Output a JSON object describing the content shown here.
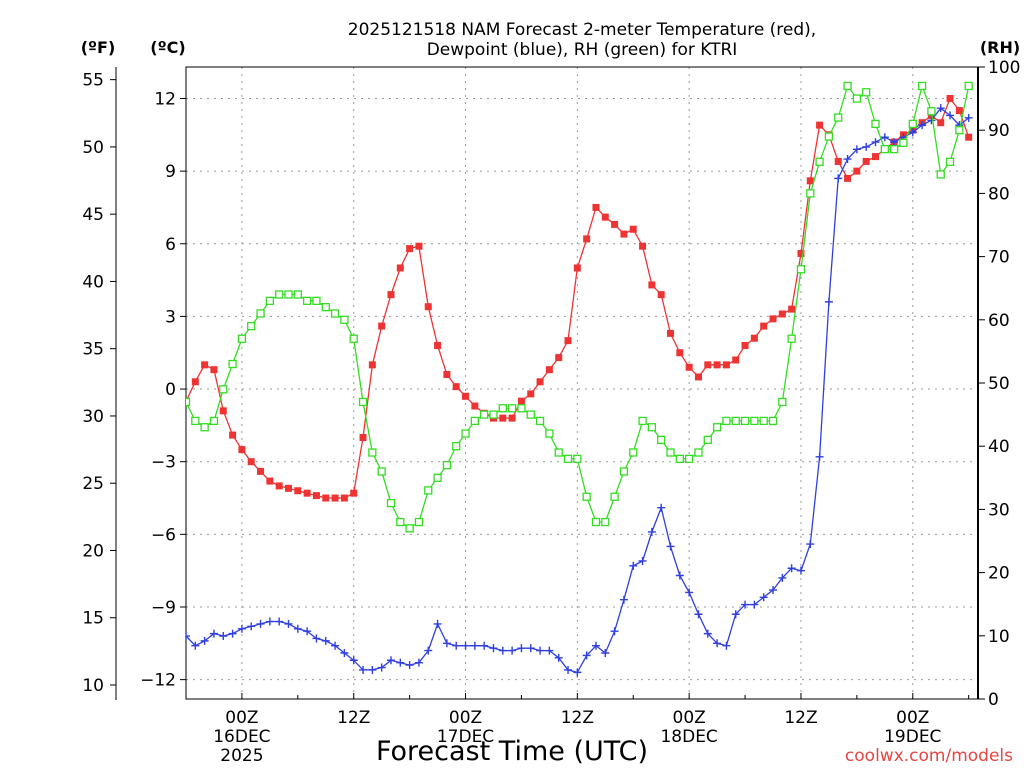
{
  "chart_data": {
    "type": "line",
    "title_line1": "2025121518 NAM Forecast 2-meter Temperature (red),",
    "title_line2": "Dewpoint (blue), RH (green) for KTRI",
    "xlabel": "Forecast Time (UTC)",
    "left_unit_f": "(ºF)",
    "left_unit_c": "(ºC)",
    "right_unit": "(RH)",
    "watermark": "coolwx.com/models",
    "hours": [
      18,
      19,
      20,
      21,
      22,
      23,
      24,
      25,
      26,
      27,
      28,
      29,
      30,
      31,
      32,
      33,
      34,
      35,
      36,
      37,
      38,
      39,
      40,
      41,
      42,
      43,
      44,
      45,
      46,
      47,
      48,
      49,
      50,
      51,
      52,
      53,
      54,
      55,
      56,
      57,
      58,
      59,
      60,
      61,
      62,
      63,
      64,
      65,
      66,
      67,
      68,
      69,
      70,
      71,
      72,
      73,
      74,
      75,
      76,
      77,
      78,
      79,
      80,
      81,
      82,
      83,
      84,
      85,
      86,
      87,
      88,
      89,
      90,
      91,
      92,
      93,
      94,
      95,
      96,
      97,
      98,
      99,
      100,
      101,
      102
    ],
    "xlim": [
      18,
      103
    ],
    "x_ticks": [
      {
        "hour": 24,
        "label": "00Z",
        "date": "16DEC",
        "year": "2025"
      },
      {
        "hour": 36,
        "label": "12Z",
        "date": "",
        "year": ""
      },
      {
        "hour": 48,
        "label": "00Z",
        "date": "17DEC",
        "year": ""
      },
      {
        "hour": 60,
        "label": "12Z",
        "date": "",
        "year": ""
      },
      {
        "hour": 72,
        "label": "00Z",
        "date": "18DEC",
        "year": ""
      },
      {
        "hour": 84,
        "label": "12Z",
        "date": "",
        "year": ""
      },
      {
        "hour": 96,
        "label": "00Z",
        "date": "19DEC",
        "year": ""
      }
    ],
    "ylim_c": [
      -12.8,
      13.3
    ],
    "y_ticks_c": [
      "12",
      "9",
      "6",
      "3",
      "0",
      "−3",
      "−6",
      "−9",
      "−12"
    ],
    "y_ticks_f": [
      "55",
      "50",
      "45",
      "40",
      "35",
      "30",
      "25",
      "20",
      "15",
      "10"
    ],
    "y_ticks_rh": [
      "100",
      "90",
      "80",
      "70",
      "60",
      "50",
      "40",
      "30",
      "20",
      "10",
      "0"
    ],
    "grid": true,
    "series": [
      {
        "name": "Temperature (°C)",
        "color": "#ee3333",
        "marker": "filled-square",
        "values": [
          -0.5,
          0.3,
          1.0,
          0.8,
          -0.9,
          -1.9,
          -2.5,
          -3.0,
          -3.4,
          -3.8,
          -4.0,
          -4.1,
          -4.2,
          -4.3,
          -4.4,
          -4.5,
          -4.5,
          -4.5,
          -4.3,
          -2.0,
          1.0,
          2.6,
          3.9,
          5.0,
          5.8,
          5.9,
          3.4,
          1.8,
          0.6,
          0.1,
          -0.3,
          -0.7,
          -1.0,
          -1.2,
          -1.2,
          -1.2,
          -0.5,
          -0.2,
          0.3,
          0.8,
          1.3,
          2.0,
          5.0,
          6.2,
          7.5,
          7.1,
          6.8,
          6.4,
          6.6,
          5.9,
          4.3,
          3.9,
          2.3,
          1.5,
          0.9,
          0.5,
          1.0,
          1.0,
          1.0,
          1.2,
          1.8,
          2.1,
          2.6,
          2.9,
          3.1,
          3.3,
          5.6,
          8.6,
          10.9,
          10.5,
          9.4,
          8.7,
          9.0,
          9.4,
          9.6,
          9.9,
          10.2,
          10.5,
          10.7,
          11.0,
          11.3,
          11.0,
          12.0,
          11.5,
          10.4
        ]
      },
      {
        "name": "Dewpoint (°C)",
        "color": "#2f3fe0",
        "marker": "plus",
        "values": [
          -10.2,
          -10.6,
          -10.4,
          -10.1,
          -10.2,
          -10.1,
          -9.9,
          -9.8,
          -9.7,
          -9.6,
          -9.6,
          -9.7,
          -9.9,
          -10.0,
          -10.3,
          -10.4,
          -10.6,
          -10.9,
          -11.2,
          -11.6,
          -11.6,
          -11.5,
          -11.2,
          -11.3,
          -11.4,
          -11.3,
          -10.8,
          -9.7,
          -10.5,
          -10.6,
          -10.6,
          -10.6,
          -10.6,
          -10.7,
          -10.8,
          -10.8,
          -10.7,
          -10.7,
          -10.8,
          -10.8,
          -11.1,
          -11.6,
          -11.7,
          -11.0,
          -10.6,
          -10.9,
          -10.0,
          -8.7,
          -7.3,
          -7.1,
          -5.9,
          -4.9,
          -6.5,
          -7.7,
          -8.4,
          -9.3,
          -10.1,
          -10.5,
          -10.6,
          -9.3,
          -8.9,
          -8.9,
          -8.6,
          -8.3,
          -7.8,
          -7.4,
          -7.5,
          -6.4,
          -2.8,
          3.6,
          8.7,
          9.5,
          9.9,
          10.0,
          10.2,
          10.4,
          10.2,
          10.4,
          10.6,
          10.9,
          11.1,
          11.6,
          11.3,
          10.9,
          11.2
        ]
      },
      {
        "name": "RH (%)",
        "color": "#33dd22",
        "marker": "open-square",
        "values": [
          47,
          44,
          43,
          44,
          49,
          53,
          57,
          59,
          61,
          63,
          64,
          64,
          64,
          63,
          63,
          62,
          61,
          60,
          57,
          47,
          39,
          36,
          31,
          28,
          27,
          28,
          33,
          35,
          37,
          40,
          42,
          44,
          45,
          45,
          46,
          46,
          46,
          45,
          44,
          42,
          39,
          38,
          38,
          32,
          28,
          28,
          32,
          36,
          39,
          44,
          43,
          41,
          39,
          38,
          38,
          39,
          41,
          43,
          44,
          44,
          44,
          44,
          44,
          44,
          47,
          57,
          68,
          80,
          85,
          89,
          92,
          97,
          95,
          96,
          91,
          87,
          87,
          88,
          91,
          97,
          93,
          83,
          85,
          90,
          97
        ]
      }
    ]
  }
}
